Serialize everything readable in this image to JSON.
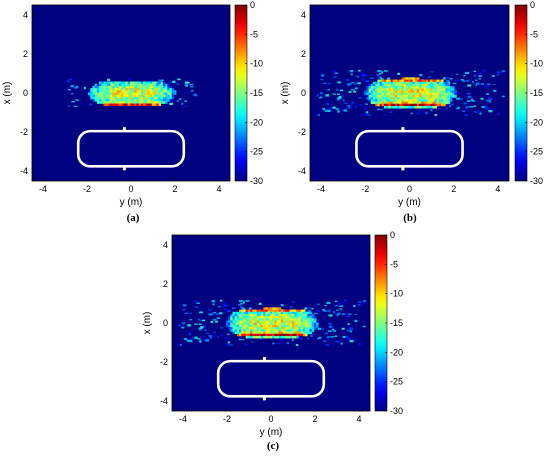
{
  "figure": {
    "panels": [
      {
        "caption": "(a)"
      },
      {
        "caption": "(b)"
      },
      {
        "caption": "(c)"
      }
    ]
  },
  "chart_data": [
    {
      "type": "heatmap",
      "panel": "(a)",
      "xlabel": "y (m)",
      "ylabel": "x (m)",
      "xlim": [
        -4.5,
        4.5
      ],
      "ylim": [
        -4.5,
        4.5
      ],
      "xticks": [
        -4,
        -2,
        0,
        2,
        4
      ],
      "yticks": [
        -4,
        -2,
        0,
        2,
        4
      ],
      "colorbar": {
        "range": [
          -30,
          0
        ],
        "ticks": [
          0,
          -5,
          -10,
          -15,
          -20,
          -25,
          -30
        ],
        "colormap": "jet"
      },
      "background_level": -30,
      "image": {
        "center": [
          0,
          0.05
        ],
        "half_width": 1.9,
        "half_height": 0.45,
        "peak_x_rows": [
          0.75,
          -0.55
        ],
        "spread": "narrow"
      },
      "outline": {
        "shape": "rounded-rectangle",
        "y_range": [
          -2.4,
          2.4
        ],
        "x_range": [
          -3.75,
          -1.95
        ],
        "color": "#ffffff"
      }
    },
    {
      "type": "heatmap",
      "panel": "(b)",
      "xlabel": "y (m)",
      "ylabel": "x (m)",
      "xlim": [
        -4.5,
        4.5
      ],
      "ylim": [
        -4.5,
        4.5
      ],
      "xticks": [
        -4,
        -2,
        0,
        2,
        4
      ],
      "yticks": [
        -4,
        -2,
        0,
        2,
        4
      ],
      "colorbar": {
        "range": [
          -30,
          0
        ],
        "ticks": [
          0,
          -5,
          -10,
          -15,
          -20,
          -25,
          -30
        ],
        "colormap": "jet"
      },
      "background_level": -30,
      "image": {
        "center": [
          0,
          0.05
        ],
        "half_width": 2.0,
        "half_height": 0.55,
        "peak_x_rows": [
          0.75,
          -0.55
        ],
        "spread": "wide"
      },
      "outline": {
        "shape": "rounded-rectangle",
        "y_range": [
          -2.4,
          2.4
        ],
        "x_range": [
          -3.75,
          -1.95
        ],
        "color": "#ffffff"
      }
    },
    {
      "type": "heatmap",
      "panel": "(c)",
      "xlabel": "y (m)",
      "ylabel": "x (m)",
      "xlim": [
        -4.5,
        4.5
      ],
      "ylim": [
        -4.5,
        4.5
      ],
      "xticks": [
        -4,
        -2,
        0,
        2,
        4
      ],
      "yticks": [
        -4,
        -2,
        0,
        2,
        4
      ],
      "colorbar": {
        "range": [
          -30,
          0
        ],
        "ticks": [
          0,
          -5,
          -10,
          -15,
          -20,
          -25,
          -30
        ],
        "colormap": "jet"
      },
      "background_level": -30,
      "image": {
        "center": [
          0,
          0.05
        ],
        "half_width": 2.0,
        "half_height": 0.55,
        "peak_x_rows": [
          0.75,
          -0.55
        ],
        "spread": "wide"
      },
      "outline": {
        "shape": "rounded-rectangle",
        "y_range": [
          -2.4,
          2.4
        ],
        "x_range": [
          -3.75,
          -1.95
        ],
        "color": "#ffffff"
      }
    }
  ]
}
